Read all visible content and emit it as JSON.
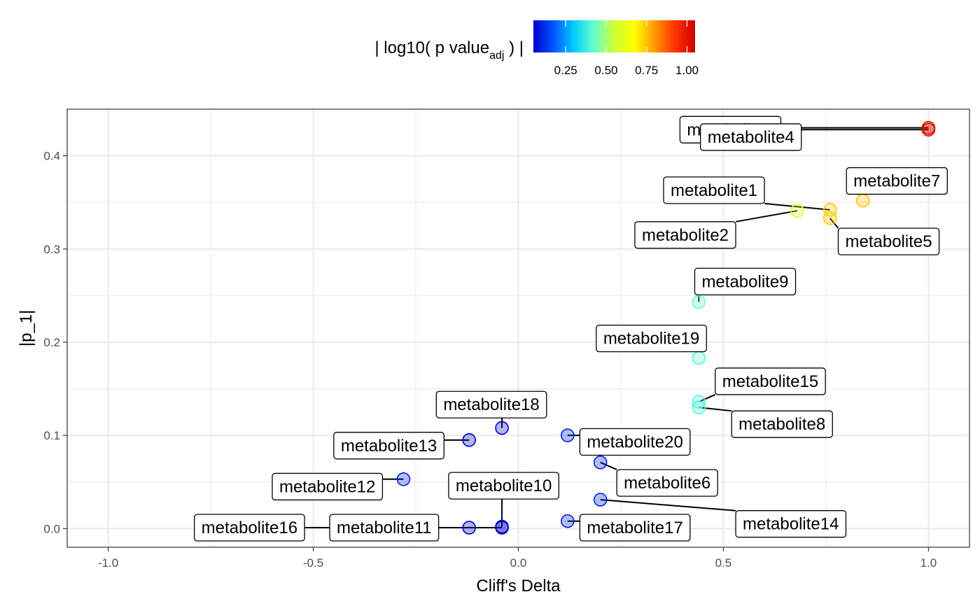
{
  "chart_data": {
    "type": "scatter",
    "xlabel": "Cliff's Delta",
    "ylabel": "|p_1|",
    "xlim": [
      -1.1,
      1.1
    ],
    "ylim": [
      -0.02,
      0.45
    ],
    "x_ticks": [
      -1.0,
      -0.5,
      0.0,
      0.5,
      1.0
    ],
    "x_tick_labels": [
      "-1.0",
      "-0.5",
      "0.0",
      "0.5",
      "1.0"
    ],
    "y_ticks": [
      0.0,
      0.1,
      0.2,
      0.3,
      0.4
    ],
    "y_tick_labels": [
      "0.0",
      "0.1",
      "0.2",
      "0.3",
      "0.4"
    ],
    "grid": true,
    "legend": {
      "title_main": "| log10( p value",
      "title_sub": "adj",
      "title_end": " ) |",
      "placement": "top",
      "colormap": [
        "#0000cc",
        "#0055ff",
        "#00ccff",
        "#66ffcc",
        "#ccff33",
        "#ffff00",
        "#ff9900",
        "#ff3300",
        "#cc0000"
      ],
      "range": [
        0.05,
        1.05
      ],
      "ticks": [
        0.25,
        0.5,
        0.75,
        1.0
      ],
      "tick_labels": [
        "0.25",
        "0.50",
        "0.75",
        "1.00"
      ]
    },
    "points": [
      {
        "label": "metabolite1",
        "x": 0.76,
        "y": 0.342,
        "color": 0.74,
        "lx": 0.6,
        "ly": 0.363,
        "lalign": "end"
      },
      {
        "label": "metabolite2",
        "x": 0.68,
        "y": 0.341,
        "color": 0.6,
        "lx": 0.53,
        "ly": 0.315,
        "lalign": "end"
      },
      {
        "label": "metabolite3",
        "x": 1.0,
        "y": 0.43,
        "color": 1.0,
        "lx": 0.64,
        "ly": 0.428,
        "lalign": "end"
      },
      {
        "label": "metabolite4",
        "x": 1.0,
        "y": 0.428,
        "color": 1.02,
        "lx": 0.69,
        "ly": 0.42,
        "lalign": "end"
      },
      {
        "label": "metabolite5",
        "x": 0.76,
        "y": 0.333,
        "color": 0.74,
        "lx": 0.78,
        "ly": 0.308,
        "lalign": "start"
      },
      {
        "label": "metabolite6",
        "x": 0.2,
        "y": 0.071,
        "color": 0.1,
        "lx": 0.24,
        "ly": 0.049,
        "lalign": "start"
      },
      {
        "label": "metabolite7",
        "x": 0.84,
        "y": 0.352,
        "color": 0.75,
        "lx": 0.8,
        "ly": 0.373,
        "lalign": "start"
      },
      {
        "label": "metabolite8",
        "x": 0.44,
        "y": 0.13,
        "color": 0.4,
        "lx": 0.52,
        "ly": 0.112,
        "lalign": "start"
      },
      {
        "label": "metabolite9",
        "x": 0.44,
        "y": 0.243,
        "color": 0.42,
        "lx": 0.43,
        "ly": 0.265,
        "lalign": "start"
      },
      {
        "label": "metabolite10",
        "x": -0.04,
        "y": 0.002,
        "color": 0.05,
        "lx": -0.17,
        "ly": 0.046,
        "lalign": "start"
      },
      {
        "label": "metabolite11",
        "x": -0.12,
        "y": 0.001,
        "color": 0.05,
        "lx": -0.46,
        "ly": 0.001,
        "lalign": "start"
      },
      {
        "label": "metabolite12",
        "x": -0.28,
        "y": 0.053,
        "color": 0.1,
        "lx": -0.6,
        "ly": 0.045,
        "lalign": "start"
      },
      {
        "label": "metabolite13",
        "x": -0.12,
        "y": 0.095,
        "color": 0.05,
        "lx": -0.45,
        "ly": 0.089,
        "lalign": "start"
      },
      {
        "label": "metabolite14",
        "x": 0.2,
        "y": 0.031,
        "color": 0.1,
        "lx": 0.53,
        "ly": 0.005,
        "lalign": "start"
      },
      {
        "label": "metabolite15",
        "x": 0.44,
        "y": 0.136,
        "color": 0.4,
        "lx": 0.48,
        "ly": 0.158,
        "lalign": "start"
      },
      {
        "label": "metabolite16",
        "x": -0.04,
        "y": 0.001,
        "color": 0.05,
        "lx": -0.79,
        "ly": 0.001,
        "lalign": "start"
      },
      {
        "label": "metabolite17",
        "x": 0.12,
        "y": 0.008,
        "color": 0.1,
        "lx": 0.15,
        "ly": 0.001,
        "lalign": "start"
      },
      {
        "label": "metabolite18",
        "x": -0.04,
        "y": 0.108,
        "color": 0.05,
        "lx": -0.2,
        "ly": 0.133,
        "lalign": "start"
      },
      {
        "label": "metabolite19",
        "x": 0.44,
        "y": 0.183,
        "color": 0.4,
        "lx": 0.19,
        "ly": 0.204,
        "lalign": "start"
      },
      {
        "label": "metabolite20",
        "x": 0.12,
        "y": 0.1,
        "color": 0.1,
        "lx": 0.15,
        "ly": 0.093,
        "lalign": "start"
      }
    ]
  }
}
